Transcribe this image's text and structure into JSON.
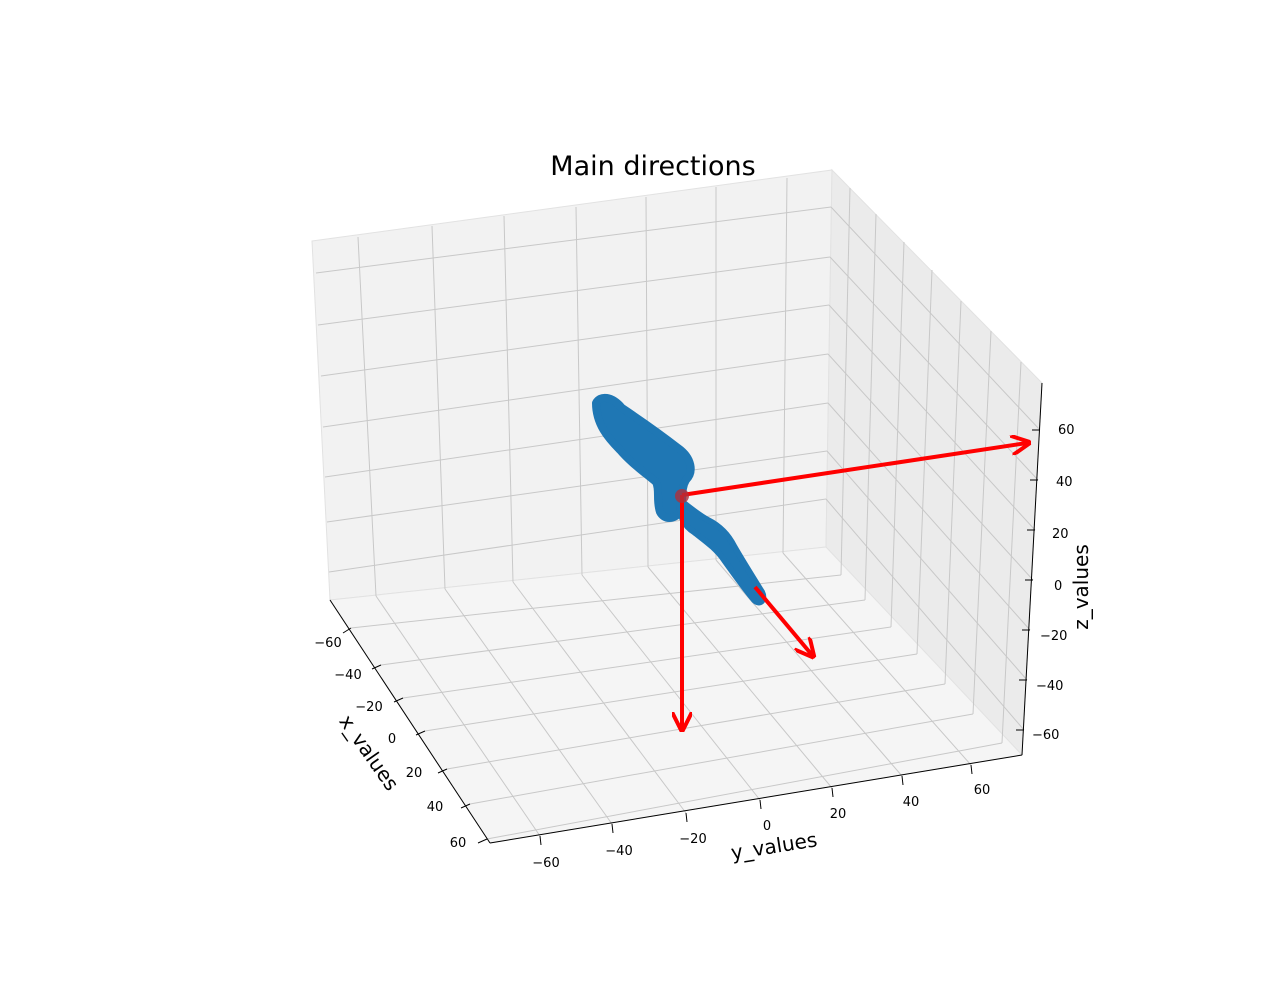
{
  "chart_data": {
    "type": "scatter",
    "projection": "3d",
    "title": "Main directions",
    "xlabel": "x_values",
    "ylabel": "y_values",
    "zlabel": "z_values",
    "xlim": [
      -70,
      70
    ],
    "ylim": [
      -70,
      70
    ],
    "zlim": [
      -70,
      70
    ],
    "xticks": [
      "−60",
      "−40",
      "−20",
      "0",
      "20",
      "40",
      "60"
    ],
    "yticks": [
      "−60",
      "−40",
      "−20",
      "0",
      "20",
      "40",
      "60"
    ],
    "zticks": [
      "60",
      "40",
      "20",
      "0",
      "−20",
      "−40",
      "−60"
    ],
    "grid": true,
    "colors": {
      "points": "#1f77b4",
      "arrows": "#ff0000",
      "center": "#b0303a"
    },
    "center": [
      0,
      0,
      0
    ],
    "point_cloud_outline": [
      "upper limb from center toward top-left",
      "lower limb from center toward bottom-right"
    ],
    "directions": [
      {
        "vector": [
          50,
          55,
          55
        ]
      },
      {
        "vector": [
          0,
          0,
          -55
        ]
      },
      {
        "vector": [
          60,
          10,
          -15
        ]
      }
    ]
  }
}
